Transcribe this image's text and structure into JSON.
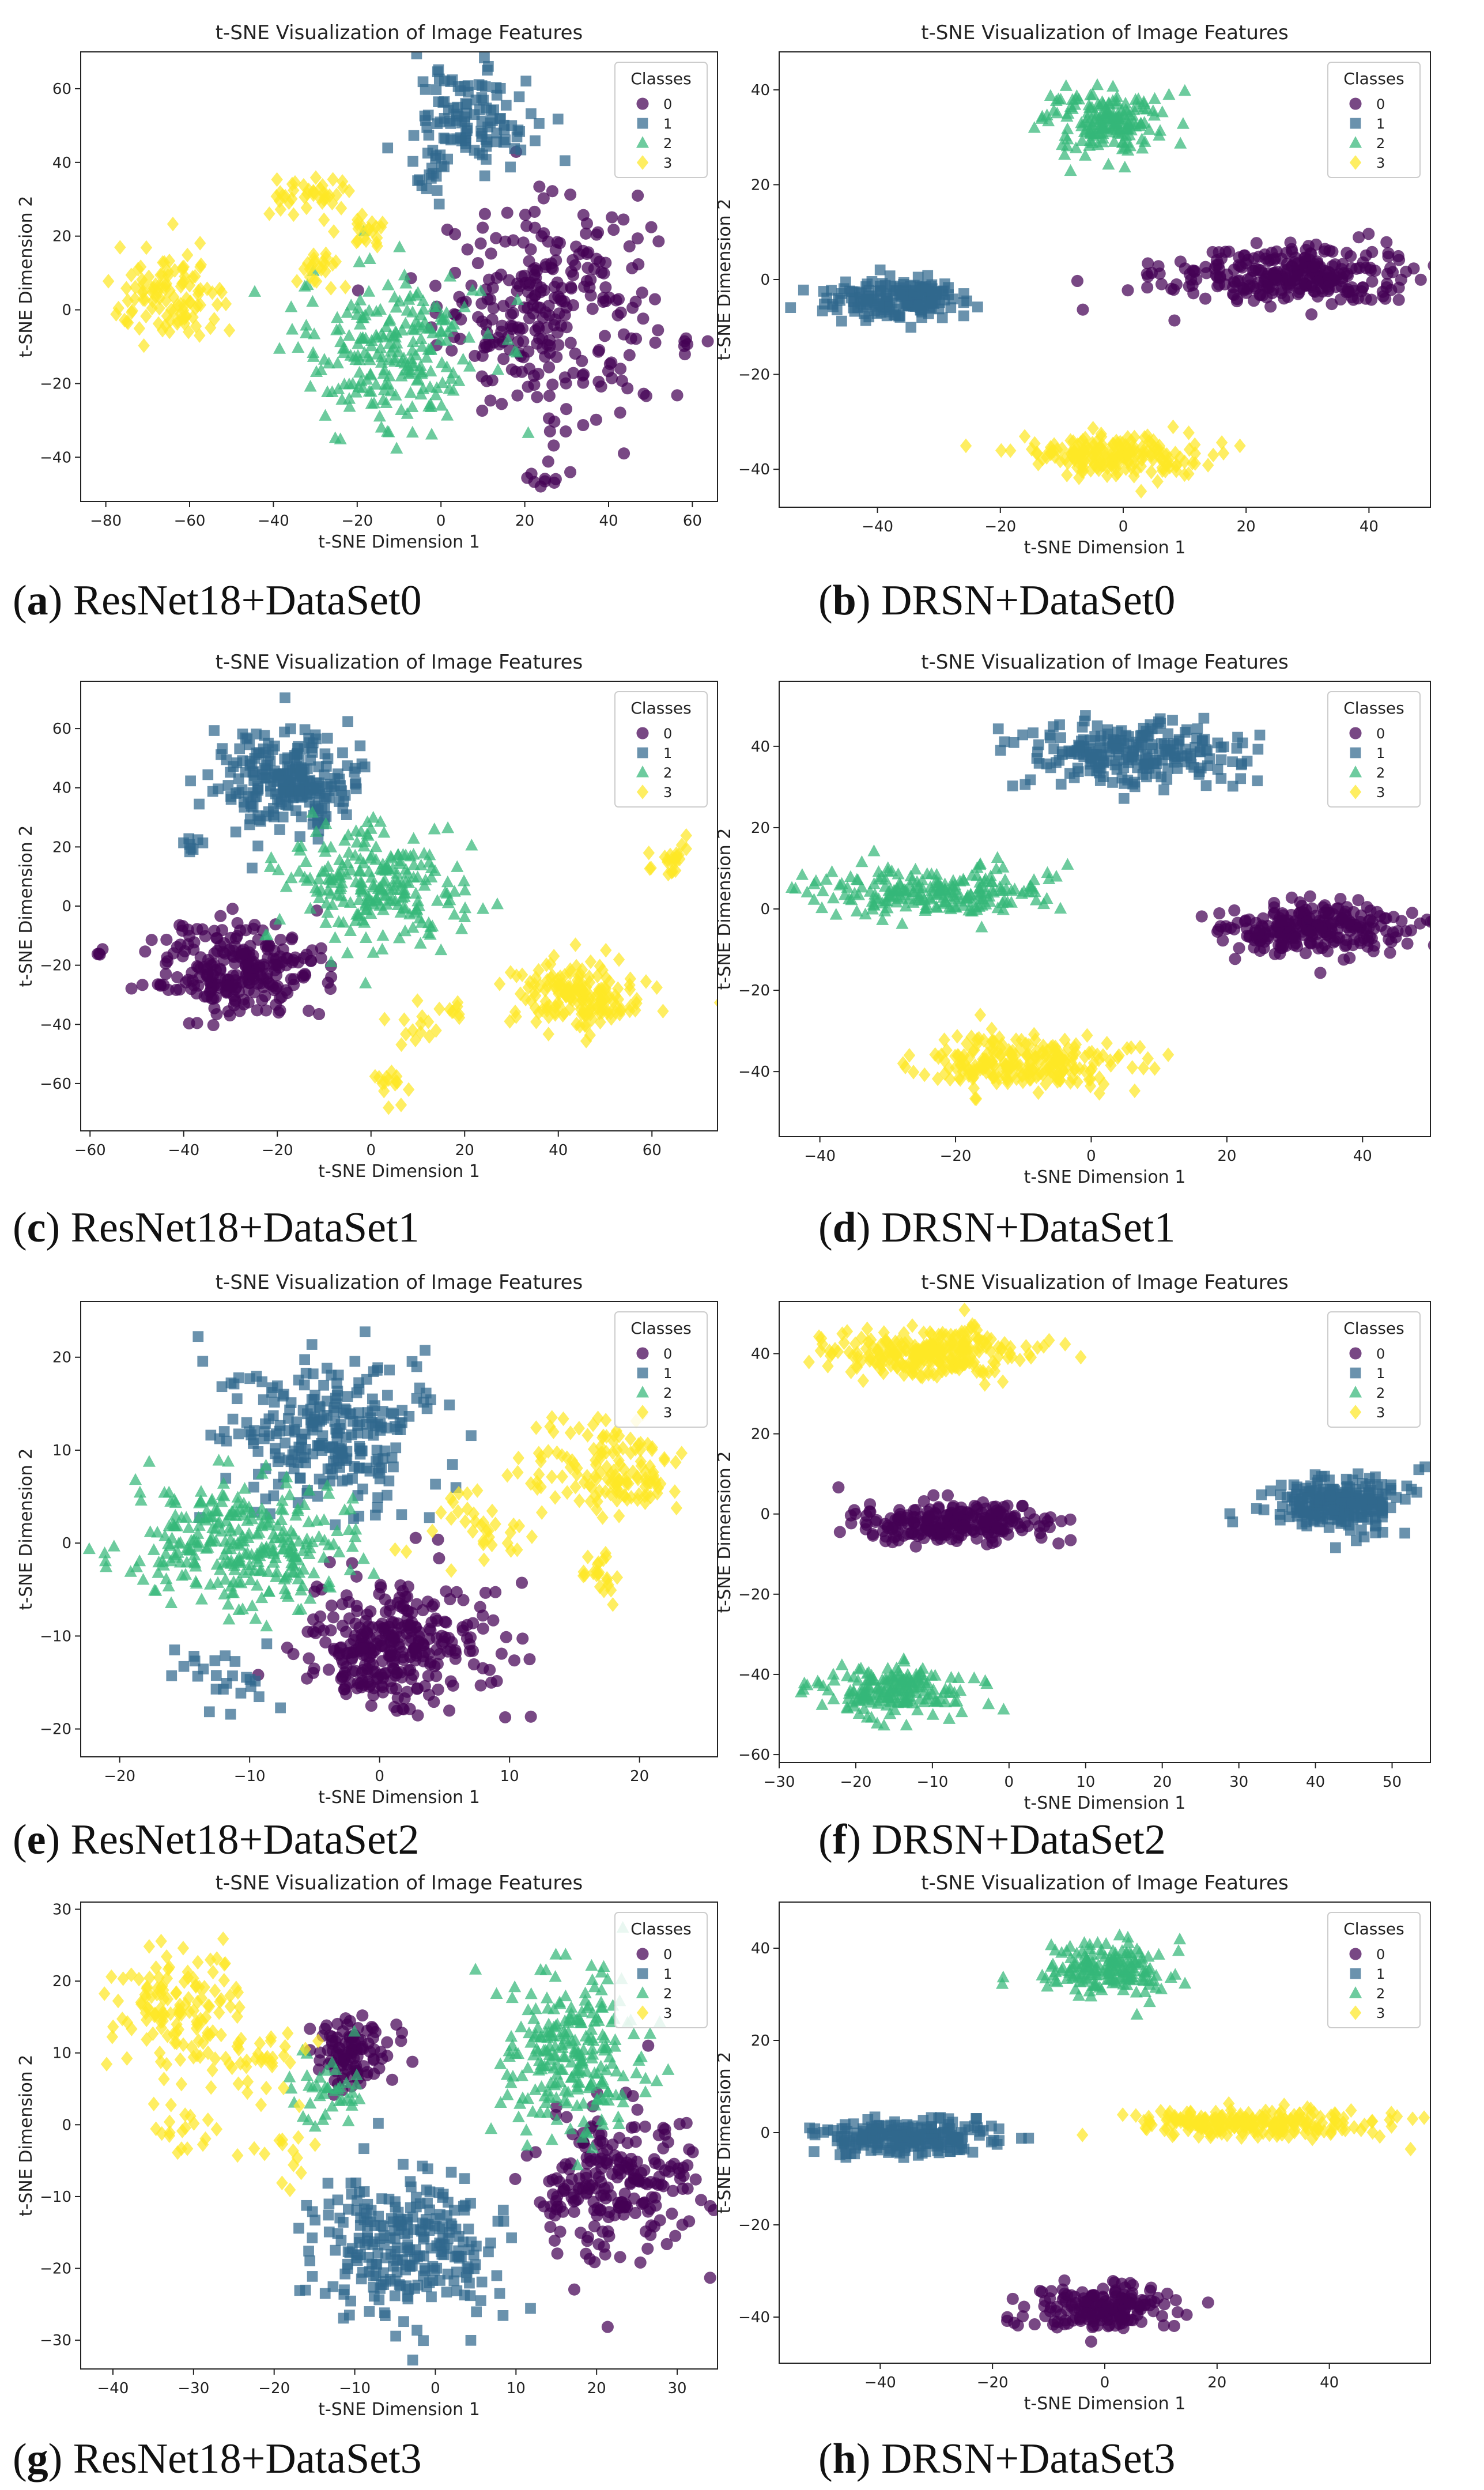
{
  "figure": {
    "captions": [
      {
        "label": "a",
        "text": "ResNet18+DataSet0"
      },
      {
        "label": "b",
        "text": "DRSN+DataSet0"
      },
      {
        "label": "c",
        "text": "ResNet18+DataSet1"
      },
      {
        "label": "d",
        "text": "DRSN+DataSet1"
      },
      {
        "label": "e",
        "text": "ResNet18+DataSet2"
      },
      {
        "label": "f",
        "text": "DRSN+DataSet2"
      },
      {
        "label": "g",
        "text": "ResNet18+DataSet3"
      },
      {
        "label": "h",
        "text": "DRSN+DataSet3"
      }
    ]
  },
  "colors": {
    "0": "#440154",
    "1": "#31688e",
    "2": "#35b779",
    "3": "#fde725"
  },
  "markers": {
    "0": "circle",
    "1": "square",
    "2": "triangle",
    "3": "diamond"
  },
  "chart_data": [
    {
      "type": "scatter",
      "title": "t-SNE Visualization of Image Features",
      "xlabel": "t-SNE Dimension 1",
      "ylabel": "t-SNE Dimension 2",
      "xlim": [
        -86,
        66
      ],
      "ylim": [
        -52,
        70
      ],
      "xticks": [
        -80,
        -60,
        -40,
        -20,
        0,
        20,
        40,
        60
      ],
      "yticks": [
        -40,
        -20,
        0,
        20,
        40,
        60
      ],
      "legend_title": "Classes",
      "legend_loc": "top-right",
      "grid": false,
      "series": [
        {
          "name": "0",
          "clusters": [
            {
              "cx": 25,
              "cy": 0,
              "sx": 16,
              "sy": 18,
              "n": 280
            },
            {
              "cx": 24,
              "cy": -46,
              "sx": 2,
              "sy": 1.5,
              "n": 8
            },
            {
              "cx": 60,
              "cy": -8,
              "sx": 2,
              "sy": 1.5,
              "n": 5
            }
          ]
        },
        {
          "name": "1",
          "clusters": [
            {
              "cx": 8,
              "cy": 52,
              "sx": 9,
              "sy": 8,
              "n": 110
            },
            {
              "cx": -2,
              "cy": 38,
              "sx": 3,
              "sy": 6,
              "n": 20
            }
          ]
        },
        {
          "name": "2",
          "clusters": [
            {
              "cx": -12,
              "cy": -10,
              "sx": 14,
              "sy": 14,
              "n": 230
            }
          ]
        },
        {
          "name": "3",
          "clusters": [
            {
              "cx": -64,
              "cy": 3,
              "sx": 9,
              "sy": 8,
              "n": 110
            },
            {
              "cx": -31,
              "cy": 30,
              "sx": 6,
              "sy": 4,
              "n": 40
            },
            {
              "cx": -18,
              "cy": 22,
              "sx": 3,
              "sy": 3,
              "n": 20
            },
            {
              "cx": -30,
              "cy": 11,
              "sx": 4,
              "sy": 3,
              "n": 22
            }
          ]
        }
      ]
    },
    {
      "type": "scatter",
      "title": "t-SNE Visualization of Image Features",
      "xlabel": "t-SNE Dimension 1",
      "ylabel": "t-SNE Dimension 2",
      "xlim": [
        -56,
        50
      ],
      "ylim": [
        -48,
        48
      ],
      "xticks": [
        -40,
        -20,
        0,
        20,
        40
      ],
      "yticks": [
        -40,
        -20,
        0,
        20,
        40
      ],
      "legend_title": "Classes",
      "legend_loc": "top-right",
      "grid": false,
      "series": [
        {
          "name": "0",
          "clusters": [
            {
              "cx": 27,
              "cy": 1,
              "sx": 13,
              "sy": 4,
              "n": 300
            }
          ]
        },
        {
          "name": "1",
          "clusters": [
            {
              "cx": -37,
              "cy": -4,
              "sx": 7,
              "sy": 2.4,
              "n": 180
            }
          ]
        },
        {
          "name": "2",
          "clusters": [
            {
              "cx": -3,
              "cy": 33,
              "sx": 6,
              "sy": 4,
              "n": 180
            }
          ]
        },
        {
          "name": "3",
          "clusters": [
            {
              "cx": -2,
              "cy": -37,
              "sx": 9,
              "sy": 2.6,
              "n": 200
            }
          ]
        }
      ]
    },
    {
      "type": "scatter",
      "title": "t-SNE Visualization of Image Features",
      "xlabel": "t-SNE Dimension 1",
      "ylabel": "t-SNE Dimension 2",
      "xlim": [
        -62,
        74
      ],
      "ylim": [
        -76,
        76
      ],
      "xticks": [
        -60,
        -40,
        -20,
        0,
        20,
        40,
        60
      ],
      "yticks": [
        -60,
        -40,
        -20,
        0,
        20,
        40,
        60
      ],
      "legend_title": "Classes",
      "legend_loc": "top-right",
      "grid": false,
      "series": [
        {
          "name": "0",
          "clusters": [
            {
              "cx": -28,
              "cy": -22,
              "sx": 11,
              "sy": 10,
              "n": 260
            },
            {
              "cx": -58,
              "cy": -16,
              "sx": 1,
              "sy": 1,
              "n": 4
            }
          ]
        },
        {
          "name": "1",
          "clusters": [
            {
              "cx": -18,
              "cy": 42,
              "sx": 9,
              "sy": 11,
              "n": 240
            },
            {
              "cx": -38,
              "cy": 20,
              "sx": 2,
              "sy": 2,
              "n": 8
            }
          ]
        },
        {
          "name": "2",
          "clusters": [
            {
              "cx": 0,
              "cy": 7,
              "sx": 12,
              "sy": 12,
              "n": 230
            }
          ]
        },
        {
          "name": "3",
          "clusters": [
            {
              "cx": 45,
              "cy": -30,
              "sx": 9,
              "sy": 8,
              "n": 170
            },
            {
              "cx": 64,
              "cy": 16,
              "sx": 3,
              "sy": 3,
              "n": 22
            },
            {
              "cx": 5,
              "cy": -60,
              "sx": 3,
              "sy": 4,
              "n": 15
            },
            {
              "cx": 10,
              "cy": -40,
              "sx": 4,
              "sy": 5,
              "n": 15
            },
            {
              "cx": 18,
              "cy": -35,
              "sx": 1.5,
              "sy": 2,
              "n": 6
            }
          ]
        }
      ]
    },
    {
      "type": "scatter",
      "title": "t-SNE Visualization of Image Features",
      "xlabel": "t-SNE Dimension 1",
      "ylabel": "t-SNE Dimension 2",
      "xlim": [
        -46,
        50
      ],
      "ylim": [
        -56,
        56
      ],
      "xticks": [
        -40,
        -20,
        0,
        20,
        40
      ],
      "yticks": [
        -40,
        -20,
        0,
        20,
        40
      ],
      "legend_title": "Classes",
      "legend_loc": "top-right",
      "grid": false,
      "series": [
        {
          "name": "0",
          "clusters": [
            {
              "cx": 33,
              "cy": -5,
              "sx": 9,
              "sy": 4,
              "n": 260
            }
          ]
        },
        {
          "name": "1",
          "clusters": [
            {
              "cx": 6,
              "cy": 38,
              "sx": 10,
              "sy": 5,
              "n": 230
            }
          ]
        },
        {
          "name": "2",
          "clusters": [
            {
              "cx": -24,
              "cy": 4,
              "sx": 11,
              "sy": 4,
              "n": 220
            }
          ]
        },
        {
          "name": "3",
          "clusters": [
            {
              "cx": -11,
              "cy": -38,
              "sx": 10,
              "sy": 4,
              "n": 240
            }
          ]
        }
      ]
    },
    {
      "type": "scatter",
      "title": "t-SNE Visualization of Image Features",
      "xlabel": "t-SNE Dimension 1",
      "ylabel": "t-SNE Dimension 2",
      "xlim": [
        -23,
        26
      ],
      "ylim": [
        -23,
        26
      ],
      "xticks": [
        -20,
        -10,
        0,
        10,
        20
      ],
      "yticks": [
        -20,
        -10,
        0,
        10,
        20
      ],
      "legend_title": "Classes",
      "legend_loc": "top-right",
      "grid": false,
      "series": [
        {
          "name": "0",
          "clusters": [
            {
              "cx": 1,
              "cy": -11,
              "sx": 4.5,
              "sy": 4.5,
              "n": 320
            }
          ]
        },
        {
          "name": "1",
          "clusters": [
            {
              "cx": -4,
              "cy": 12,
              "sx": 5,
              "sy": 5,
              "n": 260
            },
            {
              "cx": -13,
              "cy": -15,
              "sx": 3,
              "sy": 3,
              "n": 25
            }
          ]
        },
        {
          "name": "2",
          "clusters": [
            {
              "cx": -11,
              "cy": 0,
              "sx": 5,
              "sy": 4.5,
              "n": 300
            }
          ]
        },
        {
          "name": "3",
          "clusters": [
            {
              "cx": 18,
              "cy": 8,
              "sx": 3.5,
              "sy": 3,
              "n": 140
            },
            {
              "cx": 8,
              "cy": 2,
              "sx": 3,
              "sy": 3,
              "n": 35
            },
            {
              "cx": 17,
              "cy": -4,
              "sx": 1.5,
              "sy": 2,
              "n": 22
            }
          ]
        }
      ]
    },
    {
      "type": "scatter",
      "title": "t-SNE Visualization of Image Features",
      "xlabel": "t-SNE Dimension 1",
      "ylabel": "t-SNE Dimension 2",
      "xlim": [
        -30,
        55
      ],
      "ylim": [
        -62,
        53
      ],
      "xticks": [
        -30,
        -20,
        -10,
        0,
        10,
        20,
        30,
        40,
        50
      ],
      "yticks": [
        -60,
        -40,
        -20,
        0,
        20,
        40
      ],
      "legend_title": "Classes",
      "legend_loc": "top-right",
      "grid": false,
      "series": [
        {
          "name": "0",
          "clusters": [
            {
              "cx": -8,
              "cy": -2,
              "sx": 8,
              "sy": 3,
              "n": 240
            }
          ]
        },
        {
          "name": "1",
          "clusters": [
            {
              "cx": 43,
              "cy": 3,
              "sx": 5,
              "sy": 4,
              "n": 250
            }
          ]
        },
        {
          "name": "2",
          "clusters": [
            {
              "cx": -16,
              "cy": -44,
              "sx": 6,
              "sy": 4,
              "n": 190
            }
          ]
        },
        {
          "name": "3",
          "clusters": [
            {
              "cx": -10,
              "cy": 40,
              "sx": 8,
              "sy": 4,
              "n": 260
            }
          ]
        }
      ]
    },
    {
      "type": "scatter",
      "title": "t-SNE Visualization of Image Features",
      "xlabel": "t-SNE Dimension 1",
      "ylabel": "t-SNE Dimension 2",
      "xlim": [
        -44,
        35
      ],
      "ylim": [
        -34,
        31
      ],
      "xticks": [
        -40,
        -30,
        -20,
        -10,
        0,
        10,
        20,
        30
      ],
      "yticks": [
        -30,
        -20,
        -10,
        0,
        10,
        20,
        30
      ],
      "legend_title": "Classes",
      "legend_loc": "top-right",
      "grid": false,
      "series": [
        {
          "name": "0",
          "clusters": [
            {
              "cx": 22,
              "cy": -8,
              "sx": 6,
              "sy": 6,
              "n": 230
            },
            {
              "cx": -10,
              "cy": 10,
              "sx": 3,
              "sy": 3,
              "n": 100
            }
          ]
        },
        {
          "name": "1",
          "clusters": [
            {
              "cx": -4,
              "cy": -17,
              "sx": 7,
              "sy": 7,
              "n": 260
            }
          ]
        },
        {
          "name": "2",
          "clusters": [
            {
              "cx": 17,
              "cy": 10,
              "sx": 6,
              "sy": 7,
              "n": 240
            },
            {
              "cx": -13,
              "cy": 5,
              "sx": 3,
              "sy": 3,
              "n": 40
            }
          ]
        },
        {
          "name": "3",
          "clusters": [
            {
              "cx": -32,
              "cy": 16,
              "sx": 5,
              "sy": 5,
              "n": 130
            },
            {
              "cx": -22,
              "cy": 9,
              "sx": 4,
              "sy": 3,
              "n": 35
            },
            {
              "cx": -32,
              "cy": 0,
              "sx": 3,
              "sy": 3,
              "n": 20
            },
            {
              "cx": -18,
              "cy": -5,
              "sx": 3,
              "sy": 3,
              "n": 15
            }
          ]
        }
      ]
    },
    {
      "type": "scatter",
      "title": "t-SNE Visualization of Image Features",
      "xlabel": "t-SNE Dimension 1",
      "ylabel": "t-SNE Dimension 2",
      "xlim": [
        -58,
        58
      ],
      "ylim": [
        -50,
        50
      ],
      "xticks": [
        -40,
        -20,
        0,
        20,
        40
      ],
      "yticks": [
        -40,
        -20,
        0,
        20,
        40
      ],
      "legend_title": "Classes",
      "legend_loc": "top-right",
      "grid": false,
      "series": [
        {
          "name": "0",
          "clusters": [
            {
              "cx": 0,
              "cy": -38,
              "sx": 8,
              "sy": 3,
              "n": 180
            }
          ]
        },
        {
          "name": "1",
          "clusters": [
            {
              "cx": -35,
              "cy": -1,
              "sx": 10,
              "sy": 2.5,
              "n": 220
            }
          ]
        },
        {
          "name": "2",
          "clusters": [
            {
              "cx": 0,
              "cy": 36,
              "sx": 7,
              "sy": 4,
              "n": 180
            }
          ]
        },
        {
          "name": "3",
          "clusters": [
            {
              "cx": 27,
              "cy": 2,
              "sx": 14,
              "sy": 2,
              "n": 240
            }
          ]
        }
      ]
    }
  ]
}
